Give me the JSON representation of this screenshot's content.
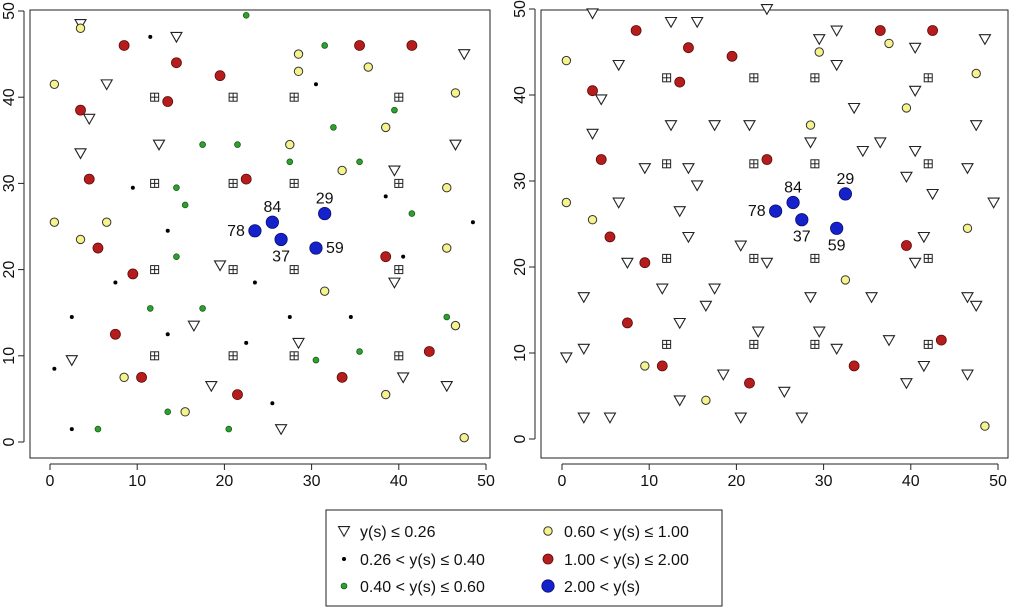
{
  "colors": {
    "c1": "#ffffff",
    "c2": "#000000",
    "c3": "#2ea02e",
    "c4": "#f7f38c",
    "c5": "#b71c1c",
    "c6": "#1522cc",
    "grid_marker": "#ffffff"
  },
  "legend": {
    "items": [
      {
        "cls": "c1",
        "label": "y(s) ≤ 0.26"
      },
      {
        "cls": "c2",
        "label": "0.26 < y(s) ≤ 0.40"
      },
      {
        "cls": "c3",
        "label": "0.40 < y(s) ≤ 0.60"
      },
      {
        "cls": "c4",
        "label": "0.60 < y(s) ≤ 1.00"
      },
      {
        "cls": "c5",
        "label": "1.00 < y(s) ≤ 2.00"
      },
      {
        "cls": "c6",
        "label": "2.00 < y(s)"
      }
    ]
  },
  "chart_data": [
    {
      "type": "scatter",
      "title": "",
      "xlabel": "",
      "ylabel": "",
      "xlim": [
        0,
        50
      ],
      "ylim": [
        0,
        50
      ],
      "x_ticks": [
        0,
        10,
        20,
        30,
        40,
        50
      ],
      "y_ticks": [
        0,
        10,
        20,
        30,
        40,
        50
      ],
      "grid": false,
      "grid_markers": [
        [
          12,
          40
        ],
        [
          21,
          40
        ],
        [
          28,
          40
        ],
        [
          40,
          40
        ],
        [
          12,
          30
        ],
        [
          21,
          30
        ],
        [
          28,
          30
        ],
        [
          40,
          30
        ],
        [
          12,
          20
        ],
        [
          21,
          20
        ],
        [
          28,
          20
        ],
        [
          40,
          20
        ],
        [
          12,
          10
        ],
        [
          21,
          10
        ],
        [
          28,
          10
        ],
        [
          40,
          10
        ]
      ],
      "points": [
        {
          "cls": "c1",
          "x": 3.5,
          "y": 48.5
        },
        {
          "cls": "c1",
          "x": 14.5,
          "y": 47
        },
        {
          "cls": "c1",
          "x": 47.5,
          "y": 45
        },
        {
          "cls": "c1",
          "x": 6.5,
          "y": 41.5
        },
        {
          "cls": "c1",
          "x": 4.5,
          "y": 37.5
        },
        {
          "cls": "c1",
          "x": 3.5,
          "y": 33.5
        },
        {
          "cls": "c1",
          "x": 12.5,
          "y": 34.5
        },
        {
          "cls": "c1",
          "x": 46.5,
          "y": 34.5
        },
        {
          "cls": "c1",
          "x": 39.5,
          "y": 31.5
        },
        {
          "cls": "c1",
          "x": 19.5,
          "y": 20.5
        },
        {
          "cls": "c1",
          "x": 39.5,
          "y": 18.5
        },
        {
          "cls": "c1",
          "x": 16.5,
          "y": 13.5
        },
        {
          "cls": "c1",
          "x": 28.5,
          "y": 11.5
        },
        {
          "cls": "c1",
          "x": 2.5,
          "y": 9.5
        },
        {
          "cls": "c1",
          "x": 40.5,
          "y": 7.5
        },
        {
          "cls": "c1",
          "x": 18.5,
          "y": 6.5
        },
        {
          "cls": "c1",
          "x": 45.5,
          "y": 6.5
        },
        {
          "cls": "c1",
          "x": 26.5,
          "y": 1.5
        },
        {
          "cls": "c2",
          "x": 11.5,
          "y": 47
        },
        {
          "cls": "c2",
          "x": 30.5,
          "y": 41.5
        },
        {
          "cls": "c2",
          "x": 9.5,
          "y": 29.5
        },
        {
          "cls": "c2",
          "x": 38.5,
          "y": 28.5
        },
        {
          "cls": "c2",
          "x": 13.5,
          "y": 24.5
        },
        {
          "cls": "c2",
          "x": 48.5,
          "y": 25.5
        },
        {
          "cls": "c2",
          "x": 40.5,
          "y": 21.5
        },
        {
          "cls": "c2",
          "x": 7.5,
          "y": 18.5
        },
        {
          "cls": "c2",
          "x": 23.5,
          "y": 18.5
        },
        {
          "cls": "c2",
          "x": 2.5,
          "y": 14.5
        },
        {
          "cls": "c2",
          "x": 27.5,
          "y": 14.5
        },
        {
          "cls": "c2",
          "x": 34.5,
          "y": 14.5
        },
        {
          "cls": "c2",
          "x": 13.5,
          "y": 12.5
        },
        {
          "cls": "c2",
          "x": 22.5,
          "y": 11.5
        },
        {
          "cls": "c2",
          "x": 0.5,
          "y": 8.5
        },
        {
          "cls": "c2",
          "x": 25.5,
          "y": 4.5
        },
        {
          "cls": "c2",
          "x": 2.5,
          "y": 1.5
        },
        {
          "cls": "c3",
          "x": 22.5,
          "y": 49.5
        },
        {
          "cls": "c3",
          "x": 31.5,
          "y": 46
        },
        {
          "cls": "c3",
          "x": 39.5,
          "y": 38.5
        },
        {
          "cls": "c3",
          "x": 32.5,
          "y": 36.5
        },
        {
          "cls": "c3",
          "x": 17.5,
          "y": 34.5
        },
        {
          "cls": "c3",
          "x": 21.5,
          "y": 34.5
        },
        {
          "cls": "c3",
          "x": 27.5,
          "y": 34.5
        },
        {
          "cls": "c3",
          "x": 27.5,
          "y": 32.5
        },
        {
          "cls": "c3",
          "x": 35.5,
          "y": 32.5
        },
        {
          "cls": "c3",
          "x": 14.5,
          "y": 29.5
        },
        {
          "cls": "c3",
          "x": 15.5,
          "y": 27.5
        },
        {
          "cls": "c3",
          "x": 41.5,
          "y": 26.5
        },
        {
          "cls": "c3",
          "x": 14.5,
          "y": 21.5
        },
        {
          "cls": "c3",
          "x": 11.5,
          "y": 15.5
        },
        {
          "cls": "c3",
          "x": 17.5,
          "y": 15.5
        },
        {
          "cls": "c3",
          "x": 45.5,
          "y": 14.5
        },
        {
          "cls": "c3",
          "x": 35.5,
          "y": 10.5
        },
        {
          "cls": "c3",
          "x": 30.5,
          "y": 9.5
        },
        {
          "cls": "c3",
          "x": 13.5,
          "y": 3.5
        },
        {
          "cls": "c3",
          "x": 5.5,
          "y": 1.5
        },
        {
          "cls": "c3",
          "x": 20.5,
          "y": 1.5
        },
        {
          "cls": "c4",
          "x": 3.5,
          "y": 48
        },
        {
          "cls": "c4",
          "x": 28.5,
          "y": 45
        },
        {
          "cls": "c4",
          "x": 36.5,
          "y": 43.5
        },
        {
          "cls": "c4",
          "x": 0.5,
          "y": 41.5
        },
        {
          "cls": "c4",
          "x": 28.5,
          "y": 43
        },
        {
          "cls": "c4",
          "x": 46.5,
          "y": 40.5
        },
        {
          "cls": "c4",
          "x": 38.5,
          "y": 36.5
        },
        {
          "cls": "c4",
          "x": 27.5,
          "y": 34.5
        },
        {
          "cls": "c4",
          "x": 33.5,
          "y": 31.5
        },
        {
          "cls": "c4",
          "x": 45.5,
          "y": 29.5
        },
        {
          "cls": "c4",
          "x": 0.5,
          "y": 25.5
        },
        {
          "cls": "c4",
          "x": 6.5,
          "y": 25.5
        },
        {
          "cls": "c4",
          "x": 3.5,
          "y": 23.5
        },
        {
          "cls": "c4",
          "x": 45.5,
          "y": 22.5
        },
        {
          "cls": "c4",
          "x": 31.5,
          "y": 17.5
        },
        {
          "cls": "c4",
          "x": 46.5,
          "y": 13.5
        },
        {
          "cls": "c4",
          "x": 8.5,
          "y": 7.5
        },
        {
          "cls": "c4",
          "x": 38.5,
          "y": 5.5
        },
        {
          "cls": "c4",
          "x": 15.5,
          "y": 3.5
        },
        {
          "cls": "c4",
          "x": 47.5,
          "y": 0.5
        },
        {
          "cls": "c5",
          "x": 8.5,
          "y": 46
        },
        {
          "cls": "c5",
          "x": 35.5,
          "y": 46
        },
        {
          "cls": "c5",
          "x": 41.5,
          "y": 46
        },
        {
          "cls": "c5",
          "x": 14.5,
          "y": 44
        },
        {
          "cls": "c5",
          "x": 19.5,
          "y": 42.5
        },
        {
          "cls": "c5",
          "x": 13.5,
          "y": 39.5
        },
        {
          "cls": "c5",
          "x": 3.5,
          "y": 38.5
        },
        {
          "cls": "c5",
          "x": 4.5,
          "y": 30.5
        },
        {
          "cls": "c5",
          "x": 22.5,
          "y": 30.5
        },
        {
          "cls": "c5",
          "x": 5.5,
          "y": 22.5
        },
        {
          "cls": "c5",
          "x": 38.5,
          "y": 21.5
        },
        {
          "cls": "c5",
          "x": 9.5,
          "y": 19.5
        },
        {
          "cls": "c5",
          "x": 7.5,
          "y": 12.5
        },
        {
          "cls": "c5",
          "x": 43.5,
          "y": 10.5
        },
        {
          "cls": "c5",
          "x": 10.5,
          "y": 7.5
        },
        {
          "cls": "c5",
          "x": 33.5,
          "y": 7.5
        },
        {
          "cls": "c5",
          "x": 21.5,
          "y": 5.5
        }
      ],
      "highlights": [
        {
          "id": "78",
          "x": 23.5,
          "y": 24.5,
          "label_pos": "left"
        },
        {
          "id": "84",
          "x": 25.5,
          "y": 25.5,
          "label_pos": "above"
        },
        {
          "id": "37",
          "x": 26.5,
          "y": 23.5,
          "label_pos": "below"
        },
        {
          "id": "29",
          "x": 31.5,
          "y": 26.5,
          "label_pos": "above"
        },
        {
          "id": "59",
          "x": 30.5,
          "y": 22.5,
          "label_pos": "right"
        }
      ]
    },
    {
      "type": "scatter",
      "title": "",
      "xlabel": "",
      "ylabel": "",
      "xlim": [
        0,
        50
      ],
      "ylim": [
        0,
        50
      ],
      "x_ticks": [
        0,
        10,
        20,
        30,
        40,
        50
      ],
      "y_ticks": [
        0,
        10,
        20,
        30,
        40,
        50
      ],
      "grid": false,
      "grid_markers": [
        [
          12,
          42
        ],
        [
          22,
          42
        ],
        [
          29,
          42
        ],
        [
          42,
          42
        ],
        [
          12,
          32
        ],
        [
          22,
          32
        ],
        [
          29,
          32
        ],
        [
          42,
          32
        ],
        [
          12,
          21
        ],
        [
          22,
          21
        ],
        [
          29,
          21
        ],
        [
          42,
          21
        ],
        [
          12,
          11
        ],
        [
          22,
          11
        ],
        [
          29,
          11
        ],
        [
          42,
          11
        ]
      ],
      "points": [
        {
          "cls": "c1",
          "x": 3.5,
          "y": 49.5
        },
        {
          "cls": "c1",
          "x": 23.5,
          "y": 50
        },
        {
          "cls": "c1",
          "x": 12.5,
          "y": 48.5
        },
        {
          "cls": "c1",
          "x": 15.5,
          "y": 48.5
        },
        {
          "cls": "c1",
          "x": 31.5,
          "y": 47.5
        },
        {
          "cls": "c1",
          "x": 29.5,
          "y": 46.5
        },
        {
          "cls": "c1",
          "x": 48.5,
          "y": 46.5
        },
        {
          "cls": "c1",
          "x": 40.5,
          "y": 45.5
        },
        {
          "cls": "c1",
          "x": 6.5,
          "y": 43.5
        },
        {
          "cls": "c1",
          "x": 31.5,
          "y": 43.5
        },
        {
          "cls": "c1",
          "x": 40.5,
          "y": 40.5
        },
        {
          "cls": "c1",
          "x": 4.5,
          "y": 39.5
        },
        {
          "cls": "c1",
          "x": 33.5,
          "y": 38.5
        },
        {
          "cls": "c1",
          "x": 12.5,
          "y": 36.5
        },
        {
          "cls": "c1",
          "x": 17.5,
          "y": 36.5
        },
        {
          "cls": "c1",
          "x": 21.5,
          "y": 36.5
        },
        {
          "cls": "c1",
          "x": 47.5,
          "y": 36.5
        },
        {
          "cls": "c1",
          "x": 3.5,
          "y": 35.5
        },
        {
          "cls": "c1",
          "x": 28.5,
          "y": 34.5
        },
        {
          "cls": "c1",
          "x": 36.5,
          "y": 34.5
        },
        {
          "cls": "c1",
          "x": 34.5,
          "y": 33.5
        },
        {
          "cls": "c1",
          "x": 40.5,
          "y": 33.5
        },
        {
          "cls": "c1",
          "x": 9.5,
          "y": 31.5
        },
        {
          "cls": "c1",
          "x": 14.5,
          "y": 31.5
        },
        {
          "cls": "c1",
          "x": 46.5,
          "y": 31.5
        },
        {
          "cls": "c1",
          "x": 39.5,
          "y": 30.5
        },
        {
          "cls": "c1",
          "x": 15.5,
          "y": 29.5
        },
        {
          "cls": "c1",
          "x": 42.5,
          "y": 28.5
        },
        {
          "cls": "c1",
          "x": 6.5,
          "y": 27.5
        },
        {
          "cls": "c1",
          "x": 49.5,
          "y": 27.5
        },
        {
          "cls": "c1",
          "x": 13.5,
          "y": 26.5
        },
        {
          "cls": "c1",
          "x": 14.5,
          "y": 23.5
        },
        {
          "cls": "c1",
          "x": 41.5,
          "y": 23.5
        },
        {
          "cls": "c1",
          "x": 20.5,
          "y": 22.5
        },
        {
          "cls": "c1",
          "x": 7.5,
          "y": 20.5
        },
        {
          "cls": "c1",
          "x": 23.5,
          "y": 20.5
        },
        {
          "cls": "c1",
          "x": 40.5,
          "y": 20.5
        },
        {
          "cls": "c1",
          "x": 11.5,
          "y": 17.5
        },
        {
          "cls": "c1",
          "x": 17.5,
          "y": 17.5
        },
        {
          "cls": "c1",
          "x": 2.5,
          "y": 16.5
        },
        {
          "cls": "c1",
          "x": 16.5,
          "y": 15.5
        },
        {
          "cls": "c1",
          "x": 28.5,
          "y": 16.5
        },
        {
          "cls": "c1",
          "x": 35.5,
          "y": 16.5
        },
        {
          "cls": "c1",
          "x": 46.5,
          "y": 16.5
        },
        {
          "cls": "c1",
          "x": 47.5,
          "y": 15.5
        },
        {
          "cls": "c1",
          "x": 13.5,
          "y": 13.5
        },
        {
          "cls": "c1",
          "x": 22.5,
          "y": 12.5
        },
        {
          "cls": "c1",
          "x": 29.5,
          "y": 12.5
        },
        {
          "cls": "c1",
          "x": 37.5,
          "y": 11.5
        },
        {
          "cls": "c1",
          "x": 2.5,
          "y": 10.5
        },
        {
          "cls": "c1",
          "x": 31.5,
          "y": 10.5
        },
        {
          "cls": "c1",
          "x": 0.5,
          "y": 9.5
        },
        {
          "cls": "c1",
          "x": 41.5,
          "y": 8.5
        },
        {
          "cls": "c1",
          "x": 18.5,
          "y": 7.5
        },
        {
          "cls": "c1",
          "x": 46.5,
          "y": 7.5
        },
        {
          "cls": "c1",
          "x": 39.5,
          "y": 6.5
        },
        {
          "cls": "c1",
          "x": 25.5,
          "y": 5.5
        },
        {
          "cls": "c1",
          "x": 13.5,
          "y": 4.5
        },
        {
          "cls": "c1",
          "x": 2.5,
          "y": 2.5
        },
        {
          "cls": "c1",
          "x": 5.5,
          "y": 2.5
        },
        {
          "cls": "c1",
          "x": 20.5,
          "y": 2.5
        },
        {
          "cls": "c1",
          "x": 27.5,
          "y": 2.5
        },
        {
          "cls": "c4",
          "x": 0.5,
          "y": 44
        },
        {
          "cls": "c4",
          "x": 37.5,
          "y": 46
        },
        {
          "cls": "c4",
          "x": 29.5,
          "y": 45
        },
        {
          "cls": "c4",
          "x": 47.5,
          "y": 42.5
        },
        {
          "cls": "c4",
          "x": 39.5,
          "y": 38.5
        },
        {
          "cls": "c4",
          "x": 28.5,
          "y": 36.5
        },
        {
          "cls": "c4",
          "x": 0.5,
          "y": 27.5
        },
        {
          "cls": "c4",
          "x": 3.5,
          "y": 25.5
        },
        {
          "cls": "c4",
          "x": 46.5,
          "y": 24.5
        },
        {
          "cls": "c4",
          "x": 32.5,
          "y": 18.5
        },
        {
          "cls": "c4",
          "x": 9.5,
          "y": 8.5
        },
        {
          "cls": "c4",
          "x": 16.5,
          "y": 4.5
        },
        {
          "cls": "c4",
          "x": 48.5,
          "y": 1.5
        },
        {
          "cls": "c5",
          "x": 8.5,
          "y": 47.5
        },
        {
          "cls": "c5",
          "x": 36.5,
          "y": 47.5
        },
        {
          "cls": "c5",
          "x": 42.5,
          "y": 47.5
        },
        {
          "cls": "c5",
          "x": 14.5,
          "y": 45.5
        },
        {
          "cls": "c5",
          "x": 19.5,
          "y": 44.5
        },
        {
          "cls": "c5",
          "x": 13.5,
          "y": 41.5
        },
        {
          "cls": "c5",
          "x": 3.5,
          "y": 40.5
        },
        {
          "cls": "c5",
          "x": 4.5,
          "y": 32.5
        },
        {
          "cls": "c5",
          "x": 23.5,
          "y": 32.5
        },
        {
          "cls": "c5",
          "x": 5.5,
          "y": 23.5
        },
        {
          "cls": "c5",
          "x": 39.5,
          "y": 22.5
        },
        {
          "cls": "c5",
          "x": 9.5,
          "y": 20.5
        },
        {
          "cls": "c5",
          "x": 7.5,
          "y": 13.5
        },
        {
          "cls": "c5",
          "x": 43.5,
          "y": 11.5
        },
        {
          "cls": "c5",
          "x": 11.5,
          "y": 8.5
        },
        {
          "cls": "c5",
          "x": 33.5,
          "y": 8.5
        },
        {
          "cls": "c5",
          "x": 21.5,
          "y": 6.5
        }
      ],
      "highlights": [
        {
          "id": "78",
          "x": 24.5,
          "y": 26.5,
          "label_pos": "left"
        },
        {
          "id": "84",
          "x": 26.5,
          "y": 27.5,
          "label_pos": "above"
        },
        {
          "id": "37",
          "x": 27.5,
          "y": 25.5,
          "label_pos": "below"
        },
        {
          "id": "29",
          "x": 32.5,
          "y": 28.5,
          "label_pos": "above"
        },
        {
          "id": "59",
          "x": 31.5,
          "y": 24.5,
          "label_pos": "below"
        }
      ]
    }
  ]
}
